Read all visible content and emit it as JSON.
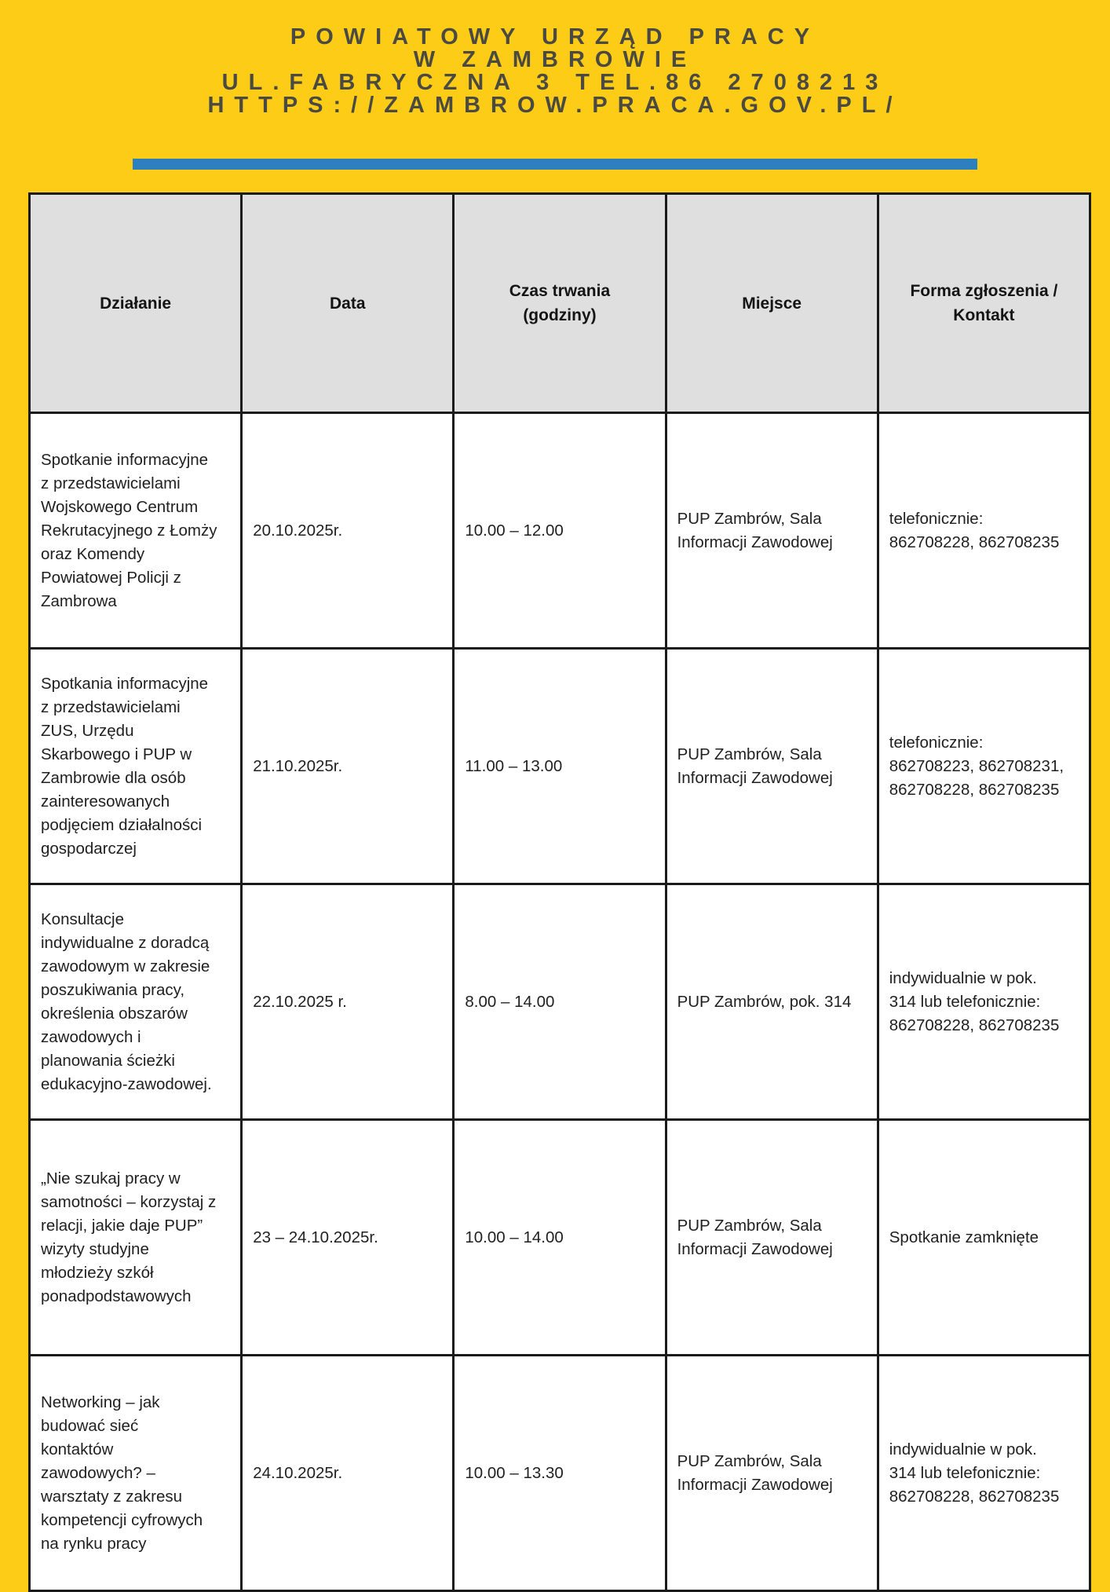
{
  "colors": {
    "page_background": "#FCCC17",
    "divider_blue": "#2E7FBD",
    "header_text": "#4A4A42",
    "table_header_background": "#DFDFDF",
    "table_border": "#1B1B1B"
  },
  "header": {
    "title_line_1": "POWIATOWY URZĄD PRACY",
    "title_line_2": "W ZAMBROWIE",
    "address_line": "UL.FABRYCZNA 3 TEL.86 2708213",
    "website_line": "HTTPS://ZAMBROW.PRACA.GOV.PL/"
  },
  "table": {
    "columns": [
      "Działanie",
      "Data",
      "Czas trwania\n(godziny)",
      "Miejsce",
      "Forma zgłoszenia /\nKontakt"
    ],
    "rows": [
      {
        "activity": "Spotkanie informacyjne\nz przedstawicielami\nWojskowego Centrum\nRekrutacyjnego z Łomży\noraz Komendy\nPowiatowej Policji z\nZambrowa",
        "date": "20.10.2025r.",
        "time": "10.00 – 12.00",
        "place": "PUP Zambrów, Sala\nInformacji Zawodowej",
        "contact": "telefonicznie:\n862708228, 862708235"
      },
      {
        "activity": "Spotkania informacyjne\nz przedstawicielami\nZUS, Urzędu\nSkarbowego i PUP w\nZambrowie dla osób\nzainteresowanych\npodjęciem działalności\ngospodarczej",
        "date": "21.10.2025r.",
        "time": "11.00 – 13.00",
        "place": "PUP Zambrów, Sala\nInformacji Zawodowej",
        "contact": "telefonicznie:\n862708223, 862708231,\n862708228, 862708235"
      },
      {
        "activity": "Konsultacje\nindywidualne z doradcą\nzawodowym w zakresie\nposzukiwania pracy,\nokreślenia obszarów\nzawodowych i\nplanowania ścieżki\nedukacyjno-zawodowej.",
        "date": "22.10.2025 r.",
        "time": "8.00 – 14.00",
        "place": "PUP Zambrów, pok. 314",
        "contact": "indywidualnie w pok.\n314 lub telefonicznie:\n862708228, 862708235"
      },
      {
        "activity": "„Nie szukaj pracy w\nsamotności – korzystaj z\nrelacji, jakie daje PUP”\nwizyty studyjne\nmłodzieży szkół\nponadpodstawowych",
        "date": "23 – 24.10.2025r.",
        "time": "10.00 – 14.00",
        "place": "PUP Zambrów, Sala\nInformacji Zawodowej",
        "contact": "Spotkanie zamknięte"
      },
      {
        "activity": "Networking – jak\nbudować sieć\nkontaktów\nzawodowych? –\nwarsztaty z zakresu\nkompetencji cyfrowych\nna rynku pracy",
        "date": "24.10.2025r.",
        "time": "10.00 – 13.30",
        "place": "PUP Zambrów, Sala\nInformacji Zawodowej",
        "contact": "indywidualnie w pok.\n314 lub telefonicznie:\n862708228, 862708235"
      }
    ]
  }
}
